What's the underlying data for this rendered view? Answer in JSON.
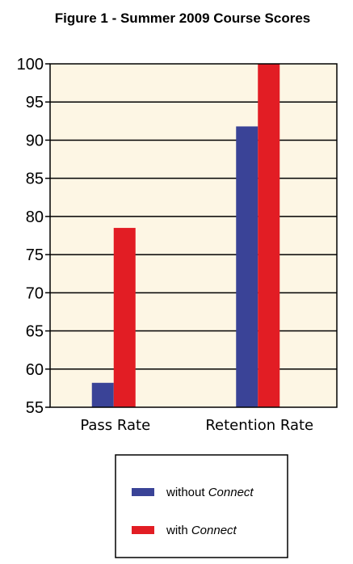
{
  "chart_data": {
    "type": "bar",
    "title": "Figure 1 - Summer 2009 Course Scores",
    "categories": [
      "Pass Rate",
      "Retention Rate"
    ],
    "series": [
      {
        "name_prefix": "without ",
        "name_italic": "Connect",
        "color": "#3a4397",
        "values": [
          58.2,
          91.8
        ]
      },
      {
        "name_prefix": "with ",
        "name_italic": "Connect",
        "color": "#e21d24",
        "values": [
          78.5,
          100
        ]
      }
    ],
    "ylim": [
      55,
      100
    ],
    "yticks": [
      "55",
      "60",
      "65",
      "70",
      "75",
      "80",
      "85",
      "90",
      "95",
      "100"
    ],
    "grid": true,
    "plot_background": "#fdf6e4",
    "legend_position": "bottom"
  }
}
